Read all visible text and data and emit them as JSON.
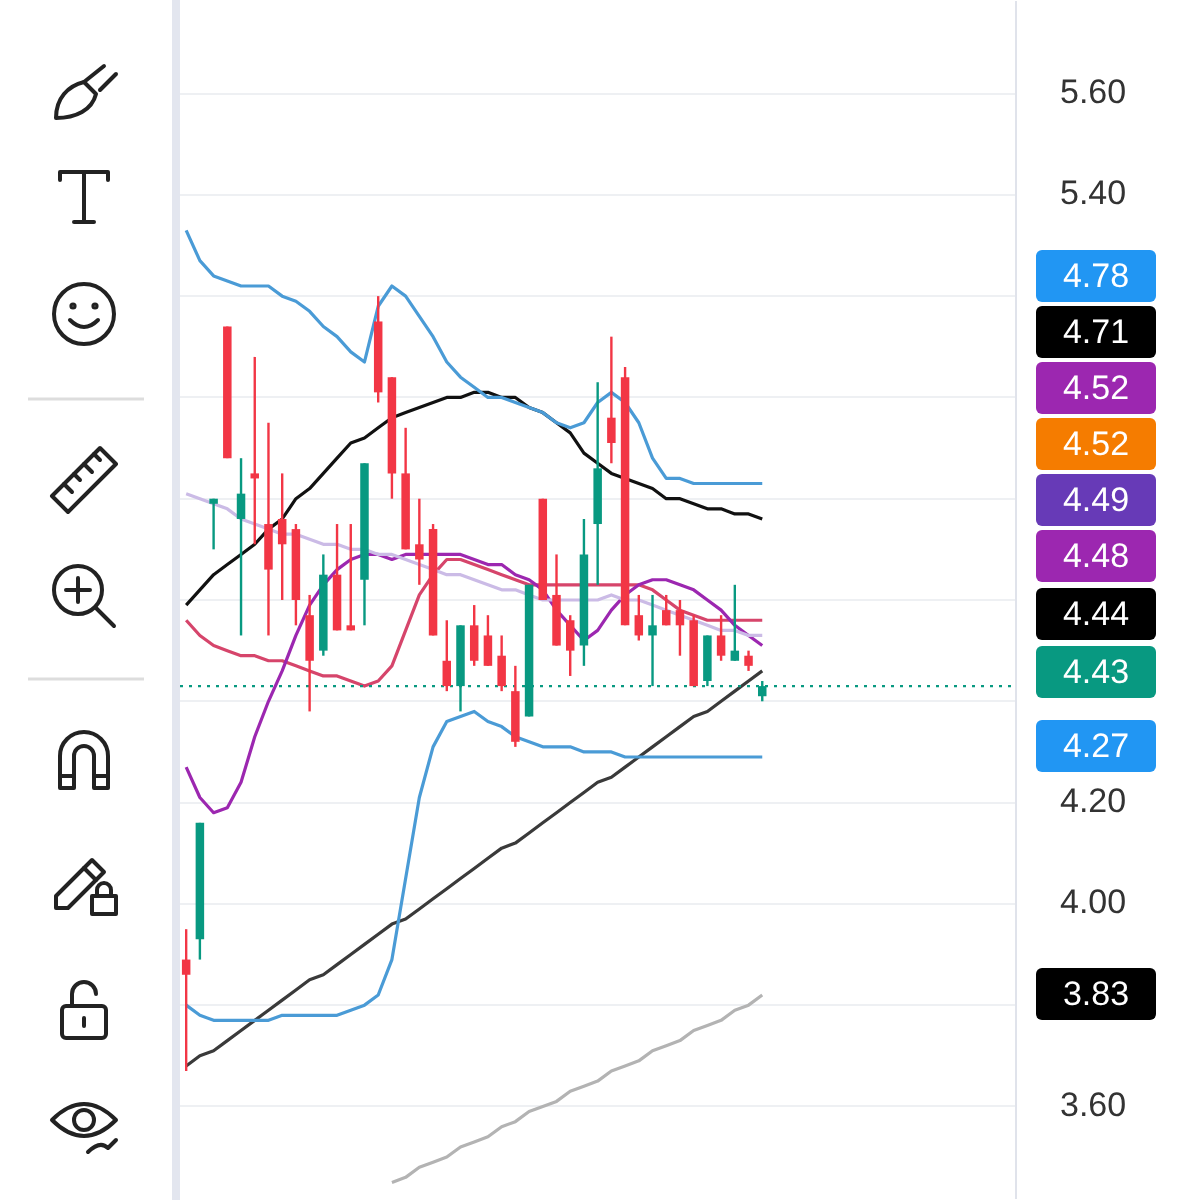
{
  "chart_data": {
    "type": "candlestick",
    "categories": [
      null,
      null,
      null,
      null,
      null,
      null,
      null,
      null,
      null,
      null,
      null,
      null,
      null,
      null,
      null,
      null,
      null,
      null,
      null,
      null,
      null,
      null,
      null,
      null,
      null,
      null,
      null,
      null,
      null,
      null,
      null,
      null,
      null,
      null,
      null,
      null,
      null,
      null,
      null,
      null,
      null,
      null,
      null
    ],
    "ohlc": [
      [
        3.89,
        3.95,
        3.67,
        3.86
      ],
      [
        3.93,
        4.16,
        3.89,
        4.16
      ],
      [
        4.79,
        4.8,
        4.7,
        4.8
      ],
      [
        5.14,
        5.14,
        4.88,
        4.88
      ],
      [
        4.76,
        4.88,
        4.53,
        4.81
      ],
      [
        4.85,
        5.08,
        4.71,
        4.84
      ],
      [
        4.75,
        4.95,
        4.53,
        4.66
      ],
      [
        4.76,
        4.85,
        4.6,
        4.71
      ],
      [
        4.74,
        4.75,
        4.55,
        4.6
      ],
      [
        4.57,
        4.61,
        4.38,
        4.48
      ],
      [
        4.5,
        4.69,
        4.49,
        4.65
      ],
      [
        4.65,
        4.75,
        4.54,
        4.54
      ],
      [
        4.55,
        4.75,
        4.54,
        4.54
      ],
      [
        4.64,
        4.87,
        4.55,
        4.87
      ],
      [
        5.15,
        5.2,
        4.99,
        5.01
      ],
      [
        5.04,
        5.04,
        4.8,
        4.85
      ],
      [
        4.85,
        4.94,
        4.7,
        4.7
      ],
      [
        4.71,
        4.8,
        4.63,
        4.68
      ],
      [
        4.74,
        4.75,
        4.53,
        4.53
      ],
      [
        4.48,
        4.56,
        4.42,
        4.43
      ],
      [
        4.43,
        4.55,
        4.38,
        4.55
      ],
      [
        4.55,
        4.59,
        4.47,
        4.48
      ],
      [
        4.53,
        4.57,
        4.47,
        4.47
      ],
      [
        4.49,
        4.53,
        4.42,
        4.43
      ],
      [
        4.42,
        4.47,
        4.31,
        4.32
      ],
      [
        4.37,
        4.63,
        4.37,
        4.63
      ],
      [
        4.8,
        4.8,
        4.6,
        4.6
      ],
      [
        4.61,
        4.69,
        4.51,
        4.51
      ],
      [
        4.56,
        4.57,
        4.45,
        4.5
      ],
      [
        4.51,
        4.76,
        4.47,
        4.69
      ],
      [
        4.75,
        5.03,
        4.63,
        4.86
      ],
      [
        4.96,
        5.12,
        4.87,
        4.91
      ],
      [
        5.04,
        5.06,
        4.55,
        4.55
      ],
      [
        4.57,
        4.61,
        4.52,
        4.53
      ],
      [
        4.53,
        4.61,
        4.43,
        4.55
      ],
      [
        4.58,
        4.61,
        4.55,
        4.55
      ],
      [
        4.58,
        4.6,
        4.49,
        4.55
      ],
      [
        4.56,
        4.57,
        4.43,
        4.43
      ],
      [
        4.44,
        4.53,
        4.43,
        4.53
      ],
      [
        4.53,
        4.57,
        4.48,
        4.49
      ],
      [
        4.48,
        4.63,
        4.48,
        4.5
      ],
      [
        4.49,
        4.5,
        4.46,
        4.47
      ],
      [
        4.41,
        4.44,
        4.4,
        4.43
      ]
    ],
    "colors": [
      "#f23645",
      "#089981",
      "#089981",
      "#f23645",
      "#089981",
      "#f23645",
      "#f23645",
      "#f23645",
      "#f23645",
      "#f23645",
      "#089981",
      "#f23645",
      "#f23645",
      "#089981",
      "#f23645",
      "#f23645",
      "#f23645",
      "#f23645",
      "#f23645",
      "#f23645",
      "#089981",
      "#f23645",
      "#f23645",
      "#f23645",
      "#f23645",
      "#089981",
      "#f23645",
      "#f23645",
      "#f23645",
      "#089981",
      "#089981",
      "#f23645",
      "#f23645",
      "#f23645",
      "#089981",
      "#f23645",
      "#f23645",
      "#f23645",
      "#089981",
      "#f23645",
      "#089981",
      "#f23645",
      "#089981"
    ],
    "series": [
      {
        "type": "line",
        "color": "#4a9bd6",
        "values": [
          5.33,
          5.27,
          5.24,
          5.23,
          5.22,
          5.22,
          5.22,
          5.2,
          5.19,
          5.17,
          5.14,
          5.12,
          5.09,
          5.07,
          5.18,
          5.22,
          5.2,
          5.16,
          5.12,
          5.07,
          5.04,
          5.02,
          5.0,
          5.0,
          4.99,
          4.98,
          4.97,
          4.95,
          4.94,
          4.95,
          4.99,
          5.01,
          4.99,
          4.95,
          4.88,
          4.84,
          4.84,
          4.83,
          4.83,
          4.83,
          4.83,
          4.83,
          4.83
        ]
      },
      {
        "type": "line",
        "color": "#111111",
        "values": [
          4.59,
          4.62,
          4.65,
          4.67,
          4.69,
          4.71,
          4.74,
          4.76,
          4.8,
          4.82,
          4.85,
          4.88,
          4.91,
          4.92,
          4.94,
          4.96,
          4.97,
          4.98,
          4.99,
          5.0,
          5.0,
          5.01,
          5.01,
          5.0,
          5.0,
          4.98,
          4.97,
          4.95,
          4.93,
          4.89,
          4.87,
          4.85,
          4.84,
          4.83,
          4.82,
          4.8,
          4.8,
          4.79,
          4.78,
          4.78,
          4.77,
          4.77,
          4.76
        ]
      },
      {
        "type": "line",
        "color": "#4a9bd6",
        "values": [
          3.8,
          3.78,
          3.77,
          3.77,
          3.77,
          3.77,
          3.77,
          3.78,
          3.78,
          3.78,
          3.78,
          3.78,
          3.79,
          3.8,
          3.82,
          3.89,
          4.05,
          4.21,
          4.31,
          4.36,
          4.37,
          4.38,
          4.36,
          4.35,
          4.33,
          4.32,
          4.31,
          4.31,
          4.31,
          4.3,
          4.3,
          4.3,
          4.29,
          4.29,
          4.29,
          4.29,
          4.29,
          4.29,
          4.29,
          4.29,
          4.29,
          4.29,
          4.29
        ]
      },
      {
        "type": "line",
        "color": "#cbbbe6",
        "values": [
          4.81,
          4.8,
          4.79,
          4.78,
          4.76,
          4.75,
          4.74,
          4.73,
          4.73,
          4.72,
          4.71,
          4.71,
          4.7,
          4.7,
          4.69,
          4.69,
          4.68,
          4.67,
          4.66,
          4.65,
          4.65,
          4.64,
          4.63,
          4.62,
          4.62,
          4.61,
          4.6,
          4.6,
          4.6,
          4.6,
          4.6,
          4.61,
          4.6,
          4.6,
          4.59,
          4.58,
          4.57,
          4.56,
          4.55,
          4.54,
          4.54,
          4.53,
          4.53
        ]
      },
      {
        "type": "line",
        "color": "#9c27b0",
        "values": [
          4.27,
          4.21,
          4.18,
          4.19,
          4.24,
          4.33,
          4.4,
          4.46,
          4.53,
          4.59,
          4.63,
          4.66,
          4.68,
          4.69,
          4.69,
          4.68,
          4.69,
          4.69,
          4.69,
          4.69,
          4.69,
          4.68,
          4.67,
          4.67,
          4.65,
          4.64,
          4.62,
          4.58,
          4.55,
          4.52,
          4.54,
          4.58,
          4.61,
          4.63,
          4.64,
          4.64,
          4.63,
          4.62,
          4.6,
          4.58,
          4.55,
          4.53,
          4.51
        ]
      },
      {
        "type": "line",
        "color": "#d6456b",
        "values": [
          4.56,
          4.53,
          4.51,
          4.5,
          4.49,
          4.49,
          4.48,
          4.48,
          4.47,
          4.46,
          4.45,
          4.45,
          4.44,
          4.43,
          4.44,
          4.47,
          4.54,
          4.61,
          4.65,
          4.68,
          4.68,
          4.67,
          4.66,
          4.65,
          4.64,
          4.63,
          4.63,
          4.63,
          4.63,
          4.63,
          4.63,
          4.63,
          4.63,
          4.63,
          4.62,
          4.6,
          4.58,
          4.57,
          4.56,
          4.56,
          4.56,
          4.56,
          4.56
        ]
      },
      {
        "type": "line",
        "color": "#3a3a3a",
        "values": [
          3.68,
          3.7,
          3.71,
          3.73,
          3.75,
          3.77,
          3.79,
          3.81,
          3.83,
          3.85,
          3.86,
          3.88,
          3.9,
          3.92,
          3.94,
          3.96,
          3.97,
          3.99,
          4.01,
          4.03,
          4.05,
          4.07,
          4.09,
          4.11,
          4.12,
          4.14,
          4.16,
          4.18,
          4.2,
          4.22,
          4.24,
          4.25,
          4.27,
          4.29,
          4.31,
          4.33,
          4.35,
          4.37,
          4.38,
          4.4,
          4.42,
          4.44,
          4.46
        ]
      },
      {
        "type": "line",
        "color": "#b3b3b3",
        "values": [
          null,
          null,
          null,
          null,
          null,
          null,
          null,
          null,
          null,
          null,
          null,
          null,
          null,
          null,
          null,
          3.45,
          3.46,
          3.48,
          3.49,
          3.5,
          3.52,
          3.53,
          3.54,
          3.56,
          3.57,
          3.59,
          3.6,
          3.61,
          3.63,
          3.64,
          3.65,
          3.67,
          3.68,
          3.69,
          3.71,
          3.72,
          3.73,
          3.75,
          3.76,
          3.77,
          3.79,
          3.8,
          3.82
        ]
      }
    ],
    "ylim": [
      3.42,
      5.78
    ],
    "yticks": [
      {
        "value": 3.6,
        "label": "3.60"
      },
      {
        "value": 3.8,
        "label": null
      },
      {
        "value": 4.0,
        "label": "4.00"
      },
      {
        "value": 4.2,
        "label": "4.20"
      },
      {
        "value": 4.4,
        "label": null
      },
      {
        "value": 4.6,
        "label": null
      },
      {
        "value": 4.8,
        "label": null
      },
      {
        "value": 5.0,
        "label": null
      },
      {
        "value": 5.2,
        "label": null
      },
      {
        "value": 5.4,
        "label": "5.40"
      },
      {
        "value": 5.6,
        "label": "5.60"
      }
    ],
    "grid": "y",
    "ref_lines": [
      {
        "axis": "y",
        "value": 4.43,
        "color": "#089981",
        "line_style": "dotted"
      }
    ],
    "annotations": [
      "4.78",
      "4.71",
      "4.52",
      "4.52",
      "4.49",
      "4.48",
      "4.44",
      "4.43",
      "4.27",
      "3.83"
    ]
  }
}
